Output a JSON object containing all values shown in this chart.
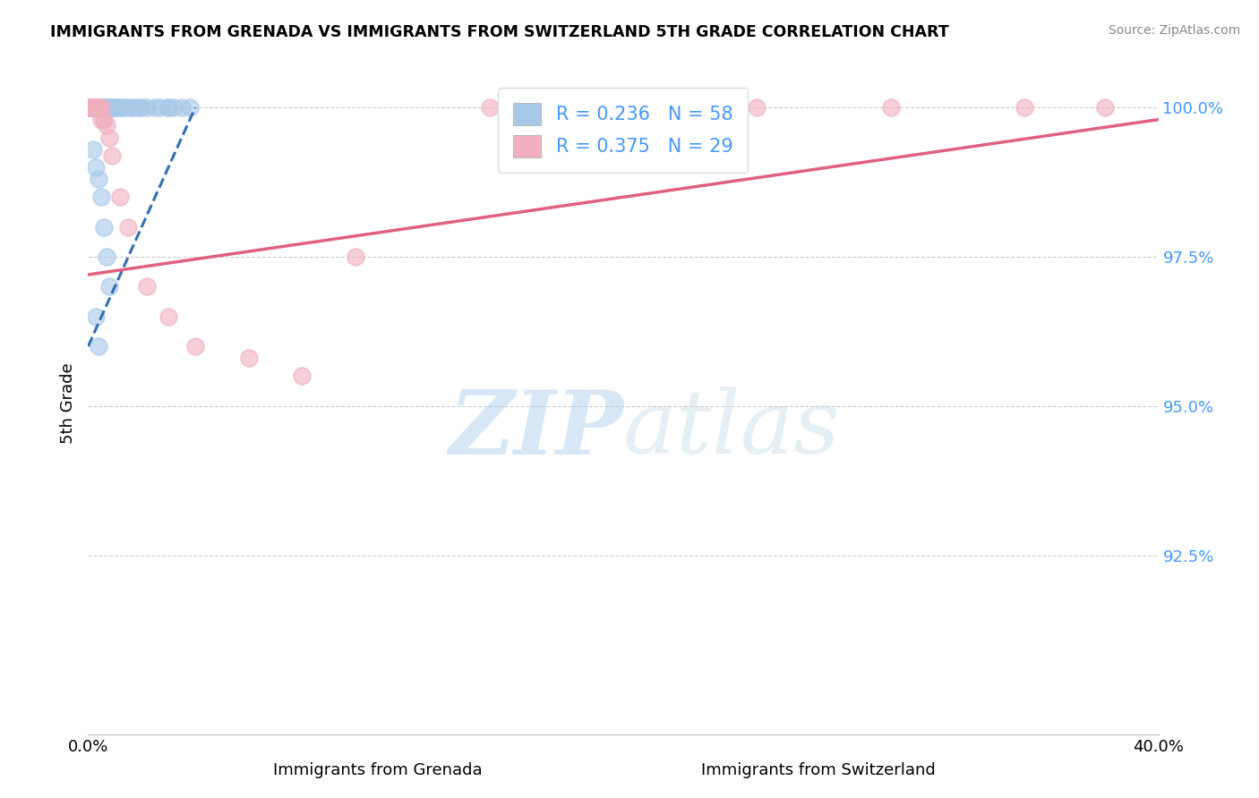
{
  "title": "IMMIGRANTS FROM GRENADA VS IMMIGRANTS FROM SWITZERLAND 5TH GRADE CORRELATION CHART",
  "source_text": "Source: ZipAtlas.com",
  "xlabel_grenada": "Immigrants from Grenada",
  "xlabel_switzerland": "Immigrants from Switzerland",
  "ylabel": "5th Grade",
  "xlim": [
    0.0,
    0.4
  ],
  "ylim": [
    0.895,
    1.006
  ],
  "yticks": [
    0.925,
    0.95,
    0.975,
    1.0
  ],
  "ytick_labels": [
    "92.5%",
    "95.0%",
    "97.5%",
    "100.0%"
  ],
  "xticks": [
    0.0,
    0.4
  ],
  "xtick_labels": [
    "0.0%",
    "40.0%"
  ],
  "grenada_color": "#a8c8e8",
  "switzerland_color": "#f0b0c0",
  "grenada_line_color": "#3070b0",
  "switzerland_line_color": "#e06080",
  "R_grenada": 0.236,
  "N_grenada": 58,
  "R_switzerland": 0.375,
  "N_switzerland": 29,
  "watermark_zip": "ZIP",
  "watermark_atlas": "atlas",
  "background_color": "#ffffff",
  "grenada_x": [
    0.0,
    0.0,
    0.0,
    0.0,
    0.0,
    0.001,
    0.001,
    0.001,
    0.001,
    0.001,
    0.002,
    0.002,
    0.002,
    0.002,
    0.003,
    0.003,
    0.003,
    0.003,
    0.004,
    0.004,
    0.004,
    0.005,
    0.005,
    0.005,
    0.006,
    0.006,
    0.007,
    0.007,
    0.008,
    0.008,
    0.009,
    0.009,
    0.01,
    0.011,
    0.012,
    0.013,
    0.014,
    0.016,
    0.017,
    0.019,
    0.02,
    0.022,
    0.025,
    0.027,
    0.03,
    0.03,
    0.032,
    0.035,
    0.038,
    0.002,
    0.003,
    0.004,
    0.005,
    0.006,
    0.007,
    0.008,
    0.003,
    0.004
  ],
  "grenada_y": [
    1.0,
    1.0,
    1.0,
    1.0,
    1.0,
    1.0,
    1.0,
    1.0,
    1.0,
    1.0,
    1.0,
    1.0,
    1.0,
    1.0,
    1.0,
    1.0,
    1.0,
    1.0,
    1.0,
    1.0,
    1.0,
    1.0,
    1.0,
    1.0,
    1.0,
    1.0,
    1.0,
    1.0,
    1.0,
    1.0,
    1.0,
    1.0,
    1.0,
    1.0,
    1.0,
    1.0,
    1.0,
    1.0,
    1.0,
    1.0,
    1.0,
    1.0,
    1.0,
    1.0,
    1.0,
    1.0,
    1.0,
    1.0,
    1.0,
    0.993,
    0.99,
    0.988,
    0.985,
    0.98,
    0.975,
    0.97,
    0.965,
    0.96
  ],
  "switzerland_x": [
    0.0,
    0.0,
    0.001,
    0.001,
    0.002,
    0.002,
    0.003,
    0.003,
    0.004,
    0.004,
    0.005,
    0.005,
    0.006,
    0.007,
    0.008,
    0.009,
    0.012,
    0.015,
    0.022,
    0.03,
    0.04,
    0.06,
    0.08,
    0.1,
    0.15,
    0.25,
    0.3,
    0.35,
    0.38
  ],
  "switzerland_y": [
    1.0,
    1.0,
    1.0,
    1.0,
    1.0,
    1.0,
    1.0,
    1.0,
    1.0,
    1.0,
    1.0,
    0.998,
    0.998,
    0.997,
    0.995,
    0.992,
    0.985,
    0.98,
    0.97,
    0.965,
    0.96,
    0.958,
    0.955,
    0.975,
    1.0,
    1.0,
    1.0,
    1.0,
    1.0
  ],
  "grenada_line_x": [
    0.0,
    0.04
  ],
  "grenada_line_y": [
    0.96,
    1.0
  ],
  "switzerland_line_x": [
    0.0,
    0.4
  ],
  "switzerland_line_y": [
    0.972,
    0.998
  ]
}
